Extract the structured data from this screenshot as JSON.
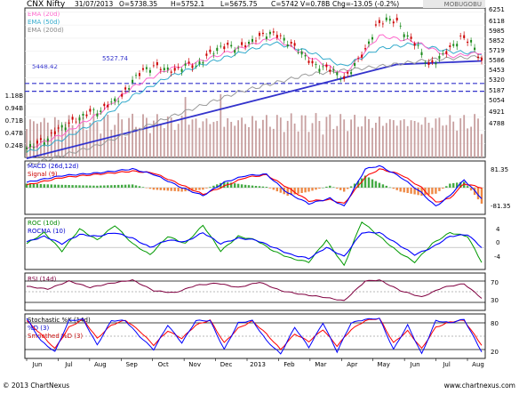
{
  "header": {
    "symbol": "CNX Nifty",
    "date": "31/07/2013",
    "open": "O=5738.35",
    "high": "H=5752.1",
    "low": "L=5675.75",
    "close": "C=5742",
    "volume": "V=0.78B",
    "change": "Chg=-13.05 (-0.2%)",
    "brand": "MOBUGOBU"
  },
  "footer": {
    "copyright": "© 2013 ChartNexus",
    "site": "www.chartnexus.com"
  },
  "colors": {
    "price_up": "#1a8a1a",
    "price_down": "#cc0000",
    "ema20": "#ff66cc",
    "ema50": "#33aacc",
    "ema200": "#999999",
    "trendline": "#3333cc",
    "volume": "#c8a0a0",
    "macd": "#0000ff",
    "signal": "#ff0000",
    "roc": "#009900",
    "rocma": "#0000ff",
    "rsi": "#800040",
    "k": "#0000ff",
    "d": "#ff0000"
  },
  "chart_data": [
    {
      "type": "candlestick",
      "title": "CNX Nifty",
      "legend": [
        "EMA (20d)",
        "EMA (50d)",
        "EMA (200d)"
      ],
      "ylim": [
        4780,
        6290
      ],
      "y_ticks": [
        6251,
        6118,
        5985,
        5852,
        5719,
        5586,
        5453,
        5320,
        5187,
        5054,
        4921,
        4788
      ],
      "x_ticks": [
        "Jun",
        "Jul",
        "Aug",
        "Sep",
        "Oct",
        "Nov",
        "Dec",
        "2013",
        "Feb",
        "Mar",
        "Apr",
        "May",
        "Jun",
        "Jul",
        "Aug"
      ],
      "annotations": [
        "5527.74",
        "5448.42"
      ],
      "support_levels": [
        5527.74,
        5448.42
      ],
      "trendline": [
        [
          0,
          4770
        ],
        [
          105,
          5720
        ]
      ],
      "volume_ticks": [
        "1.18B",
        "0.94B",
        "0.71B",
        "0.47B",
        "0.24B"
      ],
      "close_points": [
        [
          0,
          4880
        ],
        [
          3,
          4920
        ],
        [
          6,
          4970
        ],
        [
          9,
          5070
        ],
        [
          12,
          5120
        ],
        [
          15,
          5180
        ],
        [
          18,
          5240
        ],
        [
          21,
          5250
        ],
        [
          24,
          5340
        ],
        [
          27,
          5390
        ],
        [
          30,
          5560
        ],
        [
          33,
          5660
        ],
        [
          36,
          5700
        ],
        [
          39,
          5680
        ],
        [
          42,
          5650
        ],
        [
          45,
          5720
        ],
        [
          48,
          5700
        ],
        [
          51,
          5800
        ],
        [
          54,
          5880
        ],
        [
          57,
          5910
        ],
        [
          60,
          5880
        ],
        [
          63,
          5940
        ],
        [
          66,
          6000
        ],
        [
          69,
          6040
        ],
        [
          72,
          6000
        ],
        [
          75,
          5920
        ],
        [
          78,
          5840
        ],
        [
          81,
          5720
        ],
        [
          84,
          5690
        ],
        [
          87,
          5660
        ],
        [
          90,
          5560
        ],
        [
          93,
          5720
        ],
        [
          96,
          5860
        ],
        [
          99,
          6100
        ],
        [
          102,
          6180
        ],
        [
          105,
          6150
        ],
        [
          108,
          6000
        ],
        [
          111,
          5900
        ],
        [
          114,
          5700
        ],
        [
          117,
          5790
        ],
        [
          120,
          5880
        ],
        [
          123,
          5990
        ],
        [
          126,
          5950
        ],
        [
          129,
          5742
        ]
      ],
      "ema20": [
        [
          0,
          4860
        ],
        [
          10,
          5010
        ],
        [
          20,
          5210
        ],
        [
          30,
          5490
        ],
        [
          40,
          5670
        ],
        [
          50,
          5760
        ],
        [
          60,
          5880
        ],
        [
          70,
          5990
        ],
        [
          80,
          5800
        ],
        [
          90,
          5620
        ],
        [
          100,
          6010
        ],
        [
          110,
          5950
        ],
        [
          120,
          5800
        ],
        [
          129,
          5840
        ]
      ],
      "ema50": [
        [
          0,
          4830
        ],
        [
          10,
          4960
        ],
        [
          20,
          5140
        ],
        [
          30,
          5400
        ],
        [
          40,
          5590
        ],
        [
          50,
          5720
        ],
        [
          60,
          5830
        ],
        [
          70,
          5940
        ],
        [
          80,
          5850
        ],
        [
          90,
          5700
        ],
        [
          100,
          5880
        ],
        [
          110,
          5930
        ],
        [
          120,
          5850
        ],
        [
          129,
          5830
        ]
      ],
      "ema200": [
        [
          0,
          4700
        ],
        [
          20,
          4900
        ],
        [
          40,
          5180
        ],
        [
          60,
          5440
        ],
        [
          80,
          5620
        ],
        [
          100,
          5700
        ],
        [
          115,
          5770
        ],
        [
          129,
          5800
        ]
      ]
    },
    {
      "type": "line",
      "title": "MACD (26d,12d)",
      "series": [
        {
          "name": "MACD (26d,12d)"
        },
        {
          "name": "Signal (9)"
        }
      ],
      "ylim": [
        -100,
        100
      ],
      "y_ticks": [
        81.35,
        -81.35
      ],
      "macd": [
        [
          0,
          20
        ],
        [
          10,
          45
        ],
        [
          20,
          55
        ],
        [
          30,
          70
        ],
        [
          36,
          50
        ],
        [
          44,
          0
        ],
        [
          50,
          -30
        ],
        [
          56,
          20
        ],
        [
          62,
          45
        ],
        [
          68,
          50
        ],
        [
          74,
          -20
        ],
        [
          80,
          -60
        ],
        [
          86,
          -40
        ],
        [
          90,
          -70
        ],
        [
          96,
          70
        ],
        [
          100,
          82
        ],
        [
          106,
          40
        ],
        [
          112,
          -20
        ],
        [
          116,
          -70
        ],
        [
          120,
          -30
        ],
        [
          124,
          30
        ],
        [
          129,
          -40
        ]
      ],
      "signal": [
        [
          0,
          10
        ],
        [
          10,
          38
        ],
        [
          20,
          50
        ],
        [
          30,
          62
        ],
        [
          36,
          55
        ],
        [
          44,
          10
        ],
        [
          50,
          -25
        ],
        [
          56,
          5
        ],
        [
          62,
          38
        ],
        [
          68,
          48
        ],
        [
          74,
          0
        ],
        [
          80,
          -50
        ],
        [
          86,
          -45
        ],
        [
          90,
          -60
        ],
        [
          96,
          40
        ],
        [
          100,
          70
        ],
        [
          106,
          50
        ],
        [
          112,
          0
        ],
        [
          116,
          -55
        ],
        [
          120,
          -40
        ],
        [
          124,
          15
        ],
        [
          129,
          0
        ]
      ]
    },
    {
      "type": "line",
      "title": "ROC (10d)",
      "series": [
        {
          "name": "ROC (10d)"
        },
        {
          "name": "ROCMA (10)"
        }
      ],
      "ylim": [
        -6,
        8
      ],
      "y_ticks": [
        4,
        0,
        -4
      ],
      "roc": [
        [
          0,
          1
        ],
        [
          5,
          4
        ],
        [
          10,
          -1
        ],
        [
          15,
          5
        ],
        [
          20,
          2
        ],
        [
          25,
          6
        ],
        [
          30,
          1
        ],
        [
          35,
          -2
        ],
        [
          40,
          3
        ],
        [
          45,
          1
        ],
        [
          50,
          6
        ],
        [
          55,
          -1
        ],
        [
          60,
          3
        ],
        [
          65,
          2
        ],
        [
          70,
          -1
        ],
        [
          75,
          -3
        ],
        [
          80,
          -4
        ],
        [
          85,
          2
        ],
        [
          90,
          -5
        ],
        [
          95,
          7
        ],
        [
          100,
          3
        ],
        [
          105,
          -1
        ],
        [
          110,
          -4
        ],
        [
          115,
          1
        ],
        [
          120,
          4
        ],
        [
          125,
          3
        ],
        [
          129,
          -4
        ]
      ],
      "rocma": [
        [
          0,
          1.5
        ],
        [
          5,
          3
        ],
        [
          10,
          1
        ],
        [
          15,
          3.5
        ],
        [
          20,
          3
        ],
        [
          25,
          4
        ],
        [
          30,
          2.5
        ],
        [
          35,
          0
        ],
        [
          40,
          2
        ],
        [
          45,
          1.5
        ],
        [
          50,
          4
        ],
        [
          55,
          1
        ],
        [
          60,
          2.5
        ],
        [
          65,
          2
        ],
        [
          70,
          0
        ],
        [
          75,
          -2
        ],
        [
          80,
          -3
        ],
        [
          85,
          0
        ],
        [
          90,
          -2.5
        ],
        [
          95,
          4
        ],
        [
          100,
          4
        ],
        [
          105,
          1
        ],
        [
          110,
          -2
        ],
        [
          115,
          0
        ],
        [
          120,
          3
        ],
        [
          125,
          3.5
        ],
        [
          129,
          0
        ]
      ]
    },
    {
      "type": "line",
      "title": "RSI (14d)",
      "ylim": [
        15,
        85
      ],
      "y_ticks": [
        70,
        30
      ],
      "levels": [
        70,
        50,
        30
      ],
      "rsi": [
        [
          0,
          60
        ],
        [
          6,
          55
        ],
        [
          12,
          70
        ],
        [
          18,
          58
        ],
        [
          24,
          66
        ],
        [
          30,
          72
        ],
        [
          36,
          52
        ],
        [
          42,
          48
        ],
        [
          48,
          62
        ],
        [
          54,
          66
        ],
        [
          60,
          58
        ],
        [
          66,
          68
        ],
        [
          72,
          52
        ],
        [
          78,
          45
        ],
        [
          84,
          40
        ],
        [
          90,
          33
        ],
        [
          96,
          70
        ],
        [
          100,
          72
        ],
        [
          106,
          52
        ],
        [
          112,
          40
        ],
        [
          118,
          58
        ],
        [
          124,
          65
        ],
        [
          129,
          38
        ]
      ]
    },
    {
      "type": "line",
      "title": "Stochastic %K (14d)",
      "series": [
        {
          "name": "%D (3)"
        },
        {
          "name": "Smoothed %D (3)"
        }
      ],
      "ylim": [
        0,
        100
      ],
      "y_ticks": [
        80,
        20
      ],
      "levels": [
        80,
        50,
        20
      ],
      "k": [
        [
          0,
          90
        ],
        [
          4,
          40
        ],
        [
          8,
          15
        ],
        [
          12,
          85
        ],
        [
          16,
          88
        ],
        [
          20,
          30
        ],
        [
          24,
          85
        ],
        [
          28,
          85
        ],
        [
          32,
          50
        ],
        [
          36,
          20
        ],
        [
          40,
          75
        ],
        [
          44,
          35
        ],
        [
          48,
          85
        ],
        [
          52,
          85
        ],
        [
          56,
          20
        ],
        [
          60,
          80
        ],
        [
          64,
          85
        ],
        [
          68,
          40
        ],
        [
          72,
          10
        ],
        [
          76,
          70
        ],
        [
          80,
          25
        ],
        [
          84,
          80
        ],
        [
          88,
          15
        ],
        [
          92,
          80
        ],
        [
          96,
          88
        ],
        [
          100,
          90
        ],
        [
          104,
          20
        ],
        [
          108,
          75
        ],
        [
          112,
          10
        ],
        [
          116,
          85
        ],
        [
          120,
          80
        ],
        [
          124,
          88
        ],
        [
          129,
          15
        ]
      ],
      "d": [
        [
          0,
          85
        ],
        [
          4,
          55
        ],
        [
          8,
          22
        ],
        [
          12,
          70
        ],
        [
          16,
          88
        ],
        [
          20,
          45
        ],
        [
          24,
          75
        ],
        [
          28,
          86
        ],
        [
          32,
          62
        ],
        [
          36,
          30
        ],
        [
          40,
          62
        ],
        [
          44,
          45
        ],
        [
          48,
          75
        ],
        [
          52,
          86
        ],
        [
          56,
          35
        ],
        [
          60,
          68
        ],
        [
          64,
          84
        ],
        [
          68,
          55
        ],
        [
          72,
          20
        ],
        [
          76,
          55
        ],
        [
          80,
          38
        ],
        [
          84,
          65
        ],
        [
          88,
          28
        ],
        [
          92,
          65
        ],
        [
          96,
          85
        ],
        [
          100,
          90
        ],
        [
          104,
          35
        ],
        [
          108,
          62
        ],
        [
          112,
          22
        ],
        [
          116,
          70
        ],
        [
          120,
          82
        ],
        [
          124,
          86
        ],
        [
          129,
          30
        ]
      ]
    }
  ]
}
